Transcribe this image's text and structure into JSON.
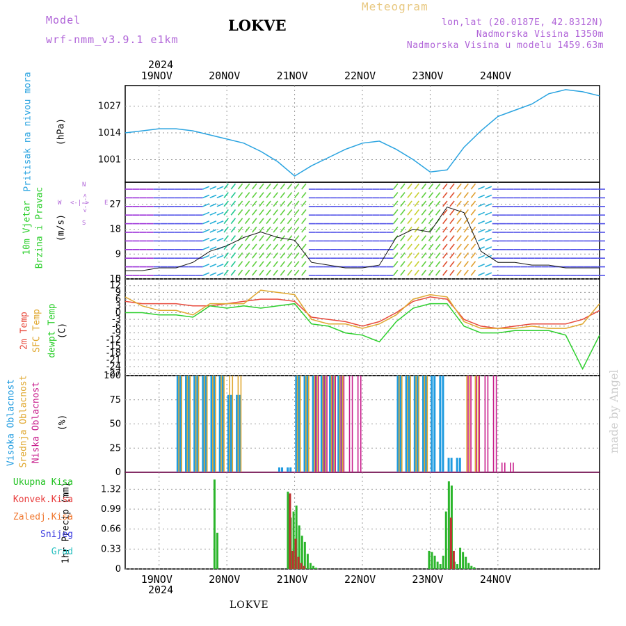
{
  "header": {
    "model_label": "Model",
    "model_value": "wrf-nmm_v3.9.1 e1km",
    "title": "LOKVE",
    "meteogram": "Meteogram",
    "lonlat": "lon,lat (20.0187E, 42.8312N)",
    "altitude": "Nadmorska Visina 1350m",
    "model_altitude": "Nadmorska Visina u modelu 1459.63m"
  },
  "footer": {
    "station": "LOKVE",
    "credit": "made by Angel"
  },
  "top_axis": {
    "year": "2024",
    "days": [
      "19NOV",
      "20NOV",
      "21NOV",
      "22NOV",
      "23NOV",
      "24NOV"
    ]
  },
  "bottom_axis": {
    "year": "2024",
    "days": [
      "19NOV",
      "20NOV",
      "21NOV",
      "22NOV",
      "23NOV",
      "24NOV"
    ]
  },
  "panel_labels": {
    "pressure": {
      "name": "Pritisak na nivou mora",
      "unit": "(hPa)",
      "color": "#29a3e0"
    },
    "wind": {
      "name1": "10m Vjetar",
      "name2": "Brzina i Pravac",
      "unit": "(m/s)",
      "color": "#2ccf2c",
      "compass_n": "N",
      "compass_s": "S",
      "compass_w": "W",
      "compass_e": "E",
      "compass_arrows": "<-|->"
    },
    "temp": {
      "t2m": "2m Temp",
      "sfc": "SFC Temp",
      "dew": "dewpt Temp",
      "unit": "(C)"
    },
    "cloud": {
      "high": "Visoka Oblacnost",
      "mid": "Srednja Oblacnost",
      "low": "Niska Oblacnost",
      "unit": "(%)"
    },
    "precip": {
      "unit_label": "1hr Precip (mm)",
      "legend": [
        {
          "label": "Ukupna Kisa",
          "color": "#22c222"
        },
        {
          "label": "Konvek.Kisa",
          "color": "#e83c3c"
        },
        {
          "label": "Zaledj.Kisa",
          "color": "#f07830"
        },
        {
          "label": "Snijeg",
          "color": "#3c3ce0"
        },
        {
          "label": "Grad",
          "color": "#28c0c0"
        }
      ]
    }
  },
  "colors": {
    "pressure_line": "#29a3e0",
    "t2m": "#e84a3c",
    "sfc": "#e0a830",
    "dew": "#2ccf2c",
    "cloud_high": "#1e9be0",
    "cloud_mid": "#e0a830",
    "cloud_low": "#c81e8c",
    "precip_total": "#2ab52a",
    "precip_conv": "#c03030",
    "precip_freezing": "#d8782c",
    "precip_grad": "#2a8a8a"
  },
  "chart_data": [
    {
      "type": "line",
      "name": "pressure",
      "ylabel": "(hPa)",
      "yticks": [
        1001,
        1014,
        1027
      ],
      "ylim": [
        990,
        1037
      ],
      "x": [
        0,
        6,
        12,
        18,
        24,
        30,
        36,
        42,
        48,
        54,
        60,
        66,
        72,
        78,
        84,
        90,
        96,
        102,
        108,
        114,
        120,
        126,
        132,
        138,
        144,
        150,
        156,
        162,
        168
      ],
      "values": [
        1014,
        1015,
        1016,
        1016,
        1015,
        1013,
        1011,
        1009,
        1005,
        1000,
        993,
        998,
        1002,
        1006,
        1009,
        1010,
        1006,
        1001,
        995,
        996,
        1007,
        1015,
        1022,
        1025,
        1028,
        1033,
        1035,
        1034,
        1032
      ]
    },
    {
      "type": "line",
      "name": "wind_speed",
      "ylabel": "(m/s)",
      "yticks": [
        0,
        9,
        18,
        27
      ],
      "ylim": [
        0,
        35
      ],
      "x": [
        0,
        6,
        12,
        18,
        24,
        30,
        36,
        42,
        48,
        54,
        60,
        66,
        72,
        78,
        84,
        90,
        96,
        102,
        108,
        114,
        120,
        126,
        132,
        138,
        144,
        150,
        156,
        162,
        168
      ],
      "values": [
        3,
        3,
        4,
        4,
        6,
        10,
        12,
        15,
        17,
        15,
        14,
        6,
        5,
        4,
        4,
        5,
        15,
        18,
        17,
        26,
        24,
        10,
        6,
        6,
        5,
        5,
        4,
        4,
        4
      ]
    },
    {
      "type": "line",
      "name": "temperature",
      "ylabel": "(C)",
      "yticks": [
        -27,
        -24,
        -21,
        -18,
        -15,
        -12,
        -9,
        -6,
        -3,
        0,
        3,
        6,
        9,
        12,
        15
      ],
      "ylim": [
        -28,
        15
      ],
      "x": [
        0,
        6,
        12,
        18,
        24,
        30,
        36,
        42,
        48,
        54,
        60,
        66,
        72,
        78,
        84,
        90,
        96,
        102,
        108,
        114,
        120,
        126,
        132,
        138,
        144,
        150,
        156,
        162,
        168
      ],
      "series": [
        {
          "name": "2m Temp",
          "values": [
            5,
            4,
            4,
            4,
            3,
            3,
            4,
            5,
            6,
            6,
            5,
            -2,
            -3,
            -4,
            -6,
            -4,
            0,
            5,
            7,
            6,
            -3,
            -6,
            -7,
            -6,
            -5,
            -5,
            -5,
            -3,
            1
          ]
        },
        {
          "name": "SFC Temp",
          "values": [
            7,
            3,
            1,
            1,
            -1,
            4,
            4,
            4,
            10,
            9,
            8,
            -3,
            -5,
            -5,
            -7,
            -5,
            -1,
            6,
            8,
            7,
            -4,
            -7,
            -7,
            -7,
            -6,
            -7,
            -7,
            -5,
            4
          ]
        },
        {
          "name": "dewpt Temp",
          "values": [
            0,
            0,
            -1,
            -1,
            -2,
            3,
            2,
            3,
            2,
            3,
            4,
            -5,
            -6,
            -9,
            -10,
            -13,
            -4,
            2,
            4,
            4,
            -6,
            -9,
            -9,
            -8,
            -8,
            -8,
            -10,
            -25,
            -10
          ]
        }
      ]
    },
    {
      "type": "bar",
      "name": "cloud_cover",
      "ylabel": "(%)",
      "yticks": [
        0,
        25,
        50,
        75,
        100
      ],
      "ylim": [
        0,
        100
      ],
      "x": [
        0,
        6,
        12,
        18,
        24,
        30,
        36,
        42,
        48,
        54,
        60,
        66,
        72,
        78,
        84,
        90,
        96,
        102,
        108,
        114,
        120,
        126,
        132,
        138,
        144,
        150,
        156,
        162,
        168
      ],
      "series": [
        {
          "name": "Visoka Oblacnost",
          "values": [
            0,
            0,
            0,
            100,
            100,
            100,
            80,
            100,
            0,
            5,
            100,
            100,
            100,
            100,
            0,
            0,
            100,
            100,
            100,
            15,
            100,
            0,
            0,
            0,
            0,
            0,
            0,
            0,
            0
          ]
        },
        {
          "name": "Srednja Oblacnost",
          "values": [
            0,
            0,
            0,
            100,
            100,
            100,
            100,
            100,
            0,
            0,
            100,
            100,
            100,
            100,
            0,
            0,
            100,
            100,
            100,
            0,
            100,
            100,
            0,
            0,
            0,
            0,
            0,
            0,
            0
          ]
        },
        {
          "name": "Niska Oblacnost",
          "values": [
            0,
            0,
            0,
            0,
            0,
            0,
            0,
            0,
            0,
            0,
            0,
            100,
            100,
            100,
            80,
            0,
            0,
            0,
            0,
            0,
            100,
            100,
            10,
            10,
            0,
            0,
            0,
            0,
            0
          ]
        }
      ]
    },
    {
      "type": "bar",
      "name": "precipitation",
      "ylabel": "1hr Precip (mm)",
      "yticks": [
        0,
        0.33,
        0.66,
        0.99,
        1.32
      ],
      "ylim": [
        0,
        1.6
      ],
      "x": [
        32,
        33,
        58,
        59,
        60,
        61,
        62,
        63,
        64,
        65,
        66,
        67,
        68,
        108,
        109,
        110,
        111,
        112,
        113,
        114,
        115,
        116,
        117,
        118,
        119,
        120,
        121,
        122,
        123,
        124
      ],
      "series": [
        {
          "name": "Ukupna Kisa",
          "values": [
            1.48,
            0.6,
            1.28,
            0.85,
            0.95,
            1.05,
            0.72,
            0.55,
            0.45,
            0.25,
            0.1,
            0.05,
            0.02,
            0.3,
            0.28,
            0.22,
            0.12,
            0.08,
            0.22,
            0.95,
            1.45,
            1.38,
            0.12,
            0.08,
            0.35,
            0.28,
            0.2,
            0.1,
            0.05,
            0.03
          ]
        },
        {
          "name": "Konvek.Kisa",
          "values": [
            0,
            0,
            1.25,
            0.3,
            0.5,
            0.2,
            0.1,
            0.05,
            0,
            0,
            0,
            0,
            0,
            0,
            0,
            0,
            0,
            0,
            0,
            0,
            0.85,
            0.3,
            0,
            0,
            0,
            0,
            0,
            0,
            0,
            0
          ]
        }
      ]
    }
  ]
}
